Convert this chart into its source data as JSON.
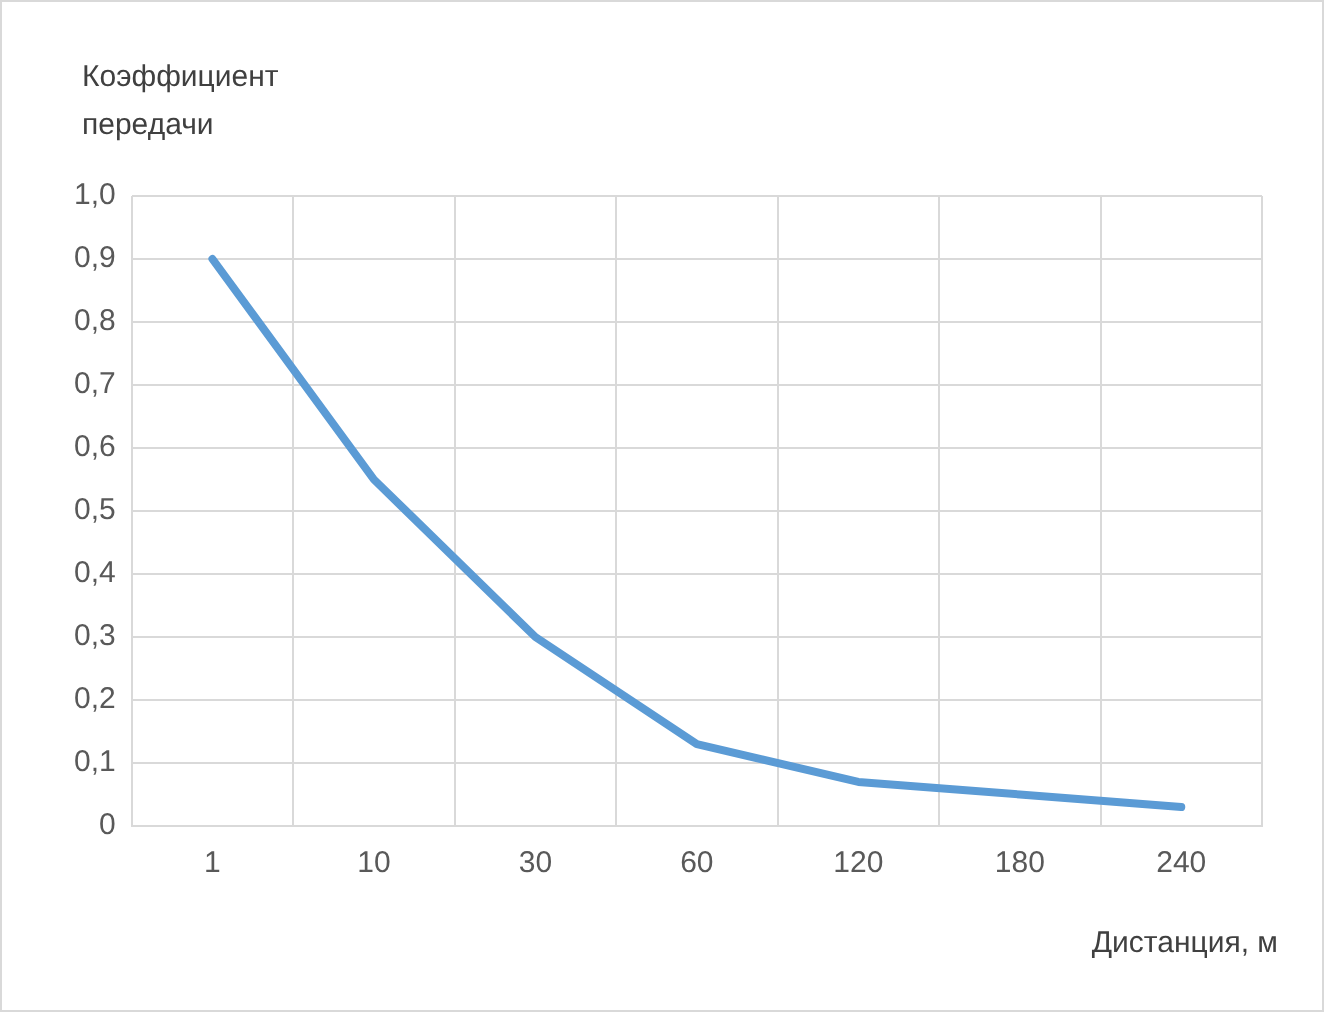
{
  "chart_data": {
    "type": "line",
    "ylabel": "Коэффициент передачи",
    "xlabel": "Дистанция, м",
    "categories": [
      "1",
      "10",
      "30",
      "60",
      "120",
      "180",
      "240"
    ],
    "series": [
      {
        "color": "#5b9bd5",
        "values": [
          0.9,
          0.55,
          0.3,
          0.13,
          0.07,
          0.05,
          0.03
        ]
      }
    ],
    "ylim": [
      0,
      1
    ],
    "yticks": [
      {
        "value": 0,
        "label": "0"
      },
      {
        "value": 0.1,
        "label": "0,1"
      },
      {
        "value": 0.2,
        "label": "0,2"
      },
      {
        "value": 0.3,
        "label": "0,3"
      },
      {
        "value": 0.4,
        "label": "0,4"
      },
      {
        "value": 0.5,
        "label": "0,5"
      },
      {
        "value": 0.6,
        "label": "0,6"
      },
      {
        "value": 0.7,
        "label": "0,7"
      },
      {
        "value": 0.8,
        "label": "0,8"
      },
      {
        "value": 0.9,
        "label": "0,9"
      },
      {
        "value": 1,
        "label": "1,0"
      }
    ],
    "grid": true,
    "legend": false,
    "marker": "none",
    "line_style": "solid"
  }
}
